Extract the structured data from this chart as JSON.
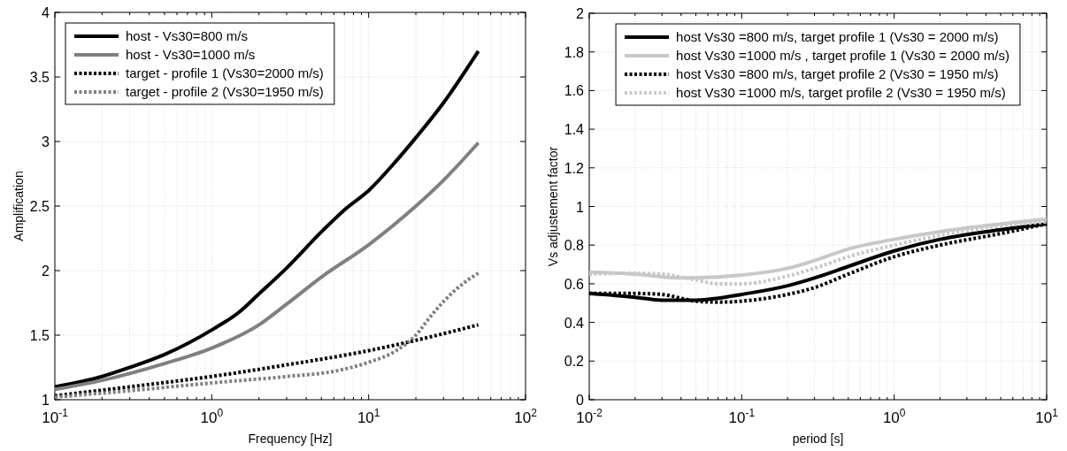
{
  "chart_data": [
    {
      "type": "line",
      "xlabel": "Frequency [Hz]",
      "ylabel": "Amplification",
      "log": "x",
      "grid": true,
      "legend": "top left",
      "xlim": [
        0.1,
        100
      ],
      "ylim": [
        1,
        4
      ],
      "xticks": [
        {
          "value": 0.1,
          "label": "10$^{-1}$"
        },
        {
          "value": 0.2,
          "label": null
        },
        {
          "value": 0.3,
          "label": null
        },
        {
          "value": 0.4,
          "label": null
        },
        {
          "value": 0.5,
          "label": null
        },
        {
          "value": 0.6,
          "label": null
        },
        {
          "value": 0.7,
          "label": null
        },
        {
          "value": 0.8,
          "label": null
        },
        {
          "value": 0.9,
          "label": null
        },
        {
          "value": 1,
          "label": "10$^{0}$"
        },
        {
          "value": 2,
          "label": null
        },
        {
          "value": 3,
          "label": null
        },
        {
          "value": 4,
          "label": null
        },
        {
          "value": 5,
          "label": null
        },
        {
          "value": 6,
          "label": null
        },
        {
          "value": 7,
          "label": null
        },
        {
          "value": 8,
          "label": null
        },
        {
          "value": 9,
          "label": null
        },
        {
          "value": 10,
          "label": "10$^{1}$"
        },
        {
          "value": 20,
          "label": null
        },
        {
          "value": 30,
          "label": null
        },
        {
          "value": 40,
          "label": null
        },
        {
          "value": 50,
          "label": null
        },
        {
          "value": 60,
          "label": null
        },
        {
          "value": 70,
          "label": null
        },
        {
          "value": 80,
          "label": null
        },
        {
          "value": 90,
          "label": null
        },
        {
          "value": 100,
          "label": "10$^{2}$"
        }
      ],
      "yticks": [
        1,
        1.5,
        2,
        2.5,
        3,
        3.5,
        4
      ],
      "series": [
        {
          "name": "host - Vs30=800 m/s",
          "color": "#000000",
          "line_style": "solid",
          "x": [
            0.1,
            0.2,
            0.3,
            0.5,
            1,
            1.5,
            2,
            3,
            5,
            7,
            10,
            15,
            20,
            30,
            50
          ],
          "values": [
            1.1,
            1.18,
            1.25,
            1.35,
            1.54,
            1.68,
            1.82,
            2.02,
            2.3,
            2.47,
            2.62,
            2.85,
            3.03,
            3.3,
            3.7
          ]
        },
        {
          "name": "host - Vs30=1000 m/s",
          "color": "#808080",
          "line_style": "solid",
          "x": [
            0.1,
            0.2,
            0.5,
            1,
            2,
            3,
            5,
            10,
            20,
            30,
            50
          ],
          "values": [
            1.08,
            1.15,
            1.28,
            1.4,
            1.58,
            1.74,
            1.95,
            2.2,
            2.5,
            2.7,
            2.99
          ]
        },
        {
          "name": "target - profile 1 (Vs30=2000 m/s)",
          "color": "#000000",
          "line_style": "dotted",
          "x": [
            0.1,
            0.3,
            1,
            3,
            10,
            20,
            50
          ],
          "values": [
            1.03,
            1.1,
            1.18,
            1.27,
            1.38,
            1.46,
            1.58
          ]
        },
        {
          "name": "target - profile 2 (Vs30=1950 m/s)",
          "color": "#808080",
          "line_style": "dotted",
          "x": [
            0.1,
            0.3,
            1,
            3,
            6,
            10,
            15,
            20,
            25,
            30,
            40,
            50
          ],
          "values": [
            1.02,
            1.07,
            1.13,
            1.18,
            1.22,
            1.29,
            1.38,
            1.5,
            1.65,
            1.76,
            1.9,
            1.98
          ]
        }
      ]
    },
    {
      "type": "line",
      "xlabel": "period [s]",
      "ylabel": "Vs adjustement factor",
      "log": "x",
      "grid": true,
      "legend": "top",
      "xlim": [
        0.01,
        10
      ],
      "ylim": [
        0,
        2
      ],
      "xticks": [
        {
          "value": 0.01,
          "label": "10$^{-2}$"
        },
        {
          "value": 0.02,
          "label": null
        },
        {
          "value": 0.03,
          "label": null
        },
        {
          "value": 0.04,
          "label": null
        },
        {
          "value": 0.05,
          "label": null
        },
        {
          "value": 0.06,
          "label": null
        },
        {
          "value": 0.07,
          "label": null
        },
        {
          "value": 0.08,
          "label": null
        },
        {
          "value": 0.09,
          "label": null
        },
        {
          "value": 0.1,
          "label": "10$^{-1}$"
        },
        {
          "value": 0.2,
          "label": null
        },
        {
          "value": 0.3,
          "label": null
        },
        {
          "value": 0.4,
          "label": null
        },
        {
          "value": 0.5,
          "label": null
        },
        {
          "value": 0.6,
          "label": null
        },
        {
          "value": 0.7,
          "label": null
        },
        {
          "value": 0.8,
          "label": null
        },
        {
          "value": 0.9,
          "label": null
        },
        {
          "value": 1,
          "label": "10$^{0}$"
        },
        {
          "value": 2,
          "label": null
        },
        {
          "value": 3,
          "label": null
        },
        {
          "value": 4,
          "label": null
        },
        {
          "value": 5,
          "label": null
        },
        {
          "value": 6,
          "label": null
        },
        {
          "value": 7,
          "label": null
        },
        {
          "value": 8,
          "label": null
        },
        {
          "value": 9,
          "label": null
        },
        {
          "value": 10,
          "label": "10$^{1}$"
        }
      ],
      "yticks": [
        0,
        0.2,
        0.4,
        0.6,
        0.8,
        1,
        1.2,
        1.4,
        1.6,
        1.8,
        2
      ],
      "series": [
        {
          "name": "host Vs30 =800 m/s, target profile 1 (Vs30 = 2000 m/s)",
          "color": "#000000",
          "line_style": "solid",
          "x": [
            0.01,
            0.02,
            0.03,
            0.05,
            0.07,
            0.1,
            0.2,
            0.3,
            0.5,
            1,
            2,
            5,
            10
          ],
          "values": [
            0.55,
            0.53,
            0.515,
            0.515,
            0.525,
            0.545,
            0.59,
            0.63,
            0.69,
            0.77,
            0.83,
            0.88,
            0.91
          ]
        },
        {
          "name": "host Vs30 =1000 m/s , target profile 1 (Vs30 = 2000 m/s)",
          "color": "#c8c8c8",
          "line_style": "solid",
          "x": [
            0.01,
            0.02,
            0.04,
            0.07,
            0.1,
            0.2,
            0.3,
            0.5,
            1,
            2,
            5,
            10
          ],
          "values": [
            0.66,
            0.65,
            0.63,
            0.635,
            0.645,
            0.68,
            0.72,
            0.78,
            0.83,
            0.87,
            0.91,
            0.935
          ]
        },
        {
          "name": "host Vs30 =800 m/s, target profile 2 (Vs30 = 1950 m/s)",
          "color": "#000000",
          "line_style": "dotted",
          "x": [
            0.01,
            0.02,
            0.03,
            0.04,
            0.05,
            0.07,
            0.1,
            0.2,
            0.3,
            0.5,
            1,
            2,
            5,
            10
          ],
          "values": [
            0.55,
            0.55,
            0.545,
            0.525,
            0.51,
            0.505,
            0.51,
            0.545,
            0.58,
            0.65,
            0.74,
            0.8,
            0.86,
            0.91
          ]
        },
        {
          "name": "host Vs30 =1000 m/s, target profile 2 (Vs30 = 1950 m/s)",
          "color": "#c8c8c8",
          "line_style": "dotted",
          "x": [
            0.01,
            0.02,
            0.03,
            0.05,
            0.07,
            0.1,
            0.2,
            0.3,
            0.5,
            1,
            2,
            5,
            10
          ],
          "values": [
            0.65,
            0.655,
            0.65,
            0.62,
            0.6,
            0.6,
            0.64,
            0.68,
            0.74,
            0.8,
            0.85,
            0.9,
            0.92
          ]
        }
      ]
    }
  ]
}
